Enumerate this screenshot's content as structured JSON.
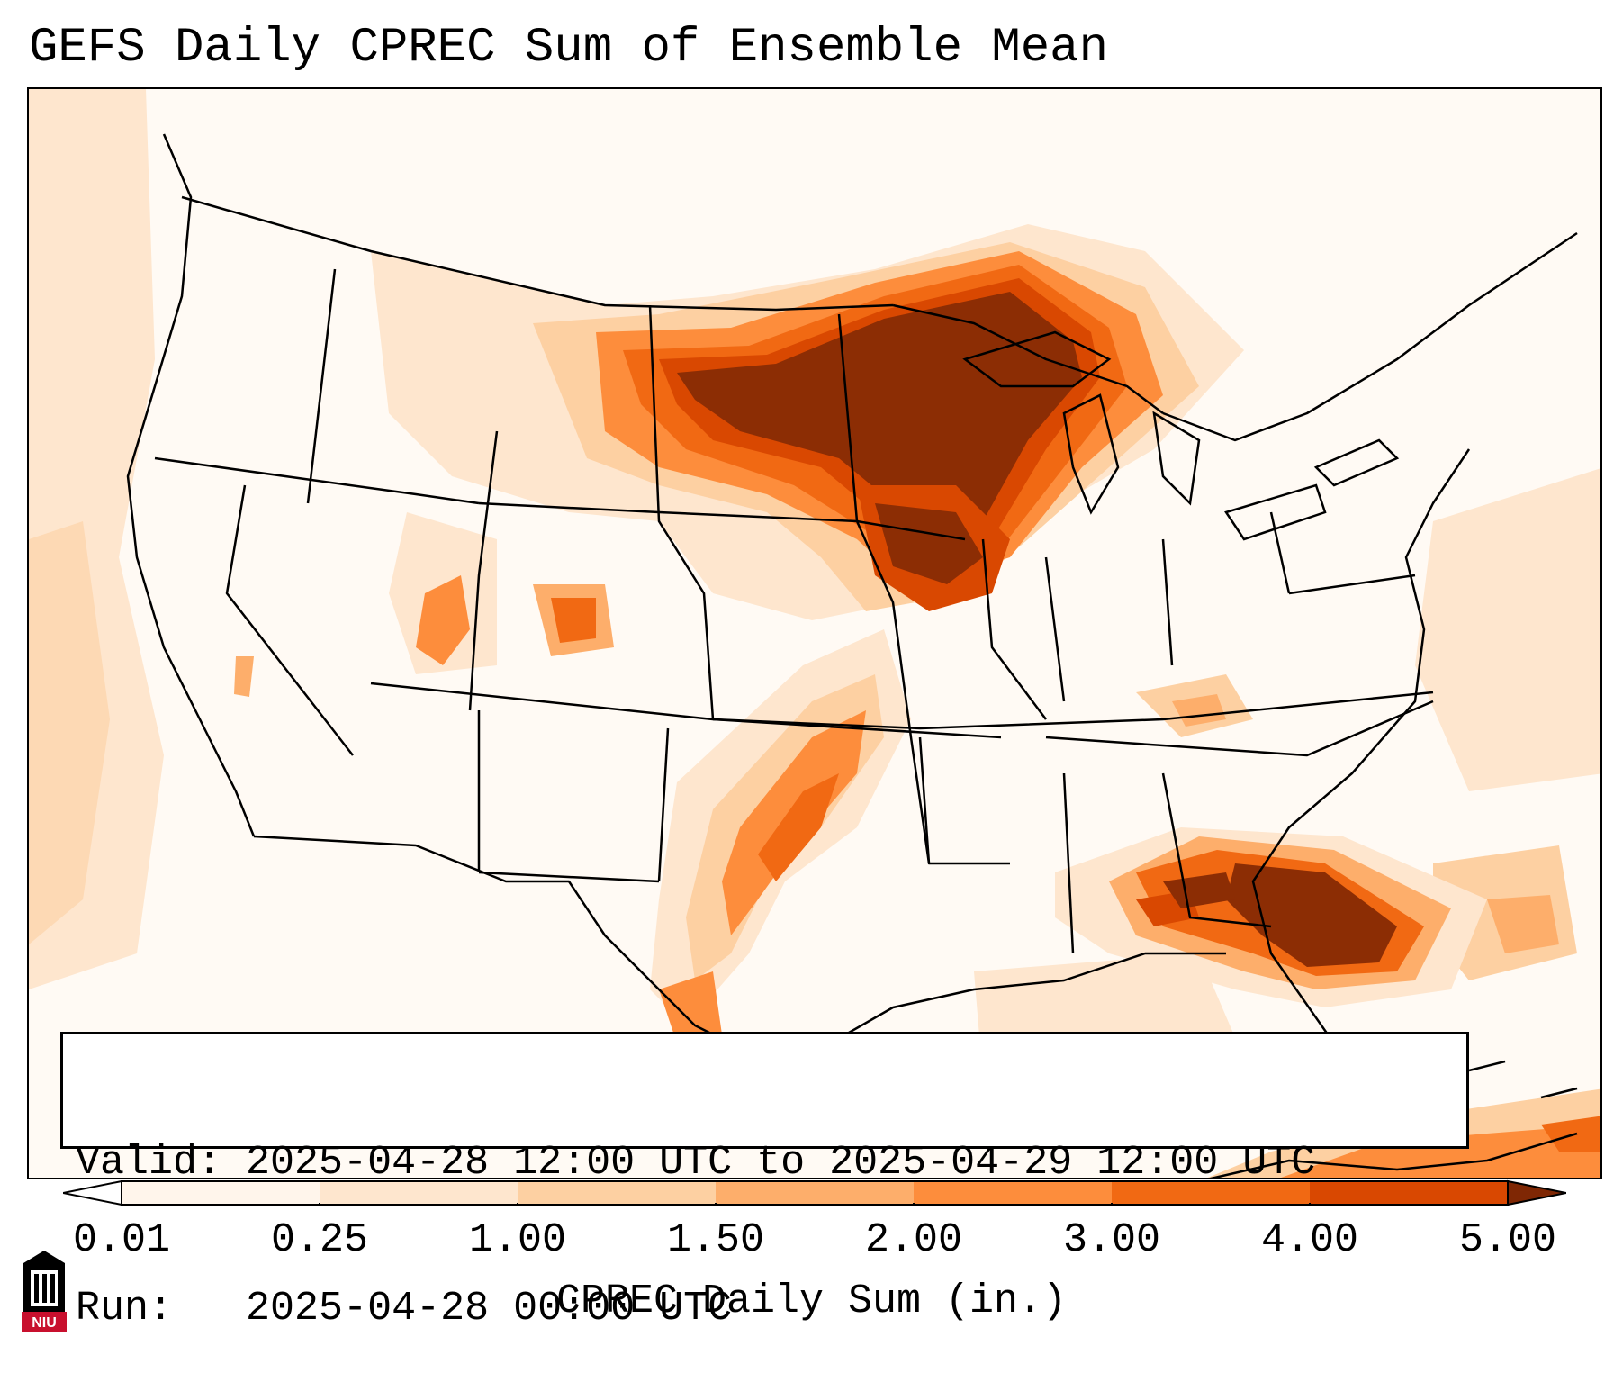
{
  "title": "GEFS Daily CPREC Sum of Ensemble Mean",
  "info": {
    "valid_label": "Valid:",
    "valid_value": "2025-04-28 12:00 UTC to 2025-04-29 12:00 UTC",
    "run_label": "Run:",
    "run_value": "2025-04-28 00:00 UTC"
  },
  "colorbar": {
    "label": "CPREC Daily Sum (in.)",
    "ticks": [
      "0.01",
      "0.25",
      "1.00",
      "1.50",
      "2.00",
      "3.00",
      "4.00",
      "5.00"
    ],
    "colors": [
      "#fff5eb",
      "#fee6ce",
      "#fdd0a2",
      "#fdae6b",
      "#fd8d3c",
      "#f16913",
      "#d94801",
      "#8c2d04"
    ],
    "under_color": "#ffffff",
    "over_color": "#7f2704"
  },
  "logo": {
    "text": "NIU",
    "colors": {
      "red": "#c8102e",
      "black": "#000000"
    }
  },
  "map": {
    "region": "Contiguous United States",
    "boundaries": "states-and-coastlines",
    "heavy_precip_areas": [
      {
        "region": "Upper Midwest / South Dakota / Minnesota / Wisconsin / Upper Michigan",
        "level": "5.00+"
      },
      {
        "region": "Iowa / northern Illinois",
        "level": "4.00-5.00"
      },
      {
        "region": "Georgia / northern Florida",
        "level": "5.00+"
      },
      {
        "region": "Oklahoma / north Texas band",
        "level": "2.00-4.00"
      },
      {
        "region": "Colorado / Utah",
        "level": "1.50-3.00"
      }
    ]
  }
}
